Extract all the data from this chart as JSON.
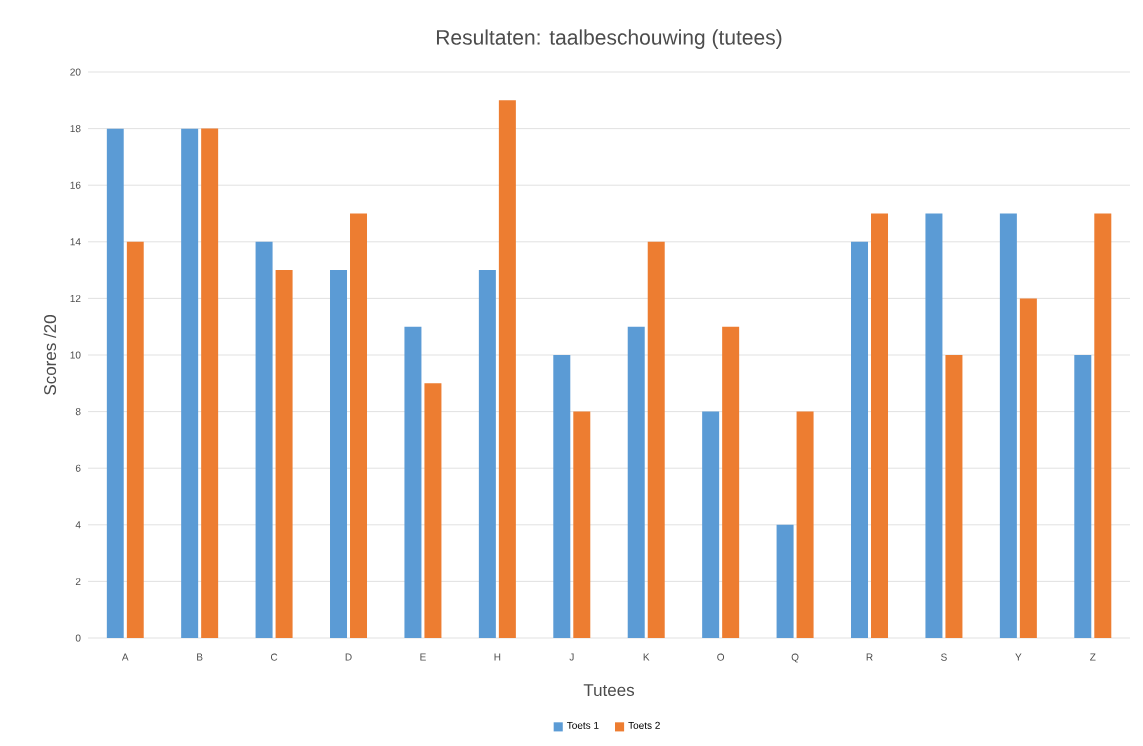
{
  "chart_data": {
    "type": "bar",
    "title": "Resultaten: taalbeschouwing (tutees)",
    "xlabel": "Tutees",
    "ylabel": "Scores /20",
    "categories": [
      "A",
      "B",
      "C",
      "D",
      "E",
      "H",
      "J",
      "K",
      "O",
      "Q",
      "R",
      "S",
      "Y",
      "Z"
    ],
    "series": [
      {
        "name": "Toets 1",
        "color": "#5b9bd5",
        "values": [
          18,
          18,
          14,
          13,
          11,
          13,
          10,
          11,
          8,
          4,
          14,
          15,
          15,
          10
        ]
      },
      {
        "name": "Toets 2",
        "color": "#ed7d31",
        "values": [
          14,
          18,
          13,
          15,
          9,
          19,
          8,
          14,
          11,
          8,
          15,
          10,
          12,
          15
        ]
      }
    ],
    "ylim": [
      0,
      20
    ],
    "yticks": [
      0,
      2,
      4,
      6,
      8,
      10,
      12,
      14,
      16,
      18,
      20
    ],
    "grid": "y",
    "legend": "bottom"
  }
}
